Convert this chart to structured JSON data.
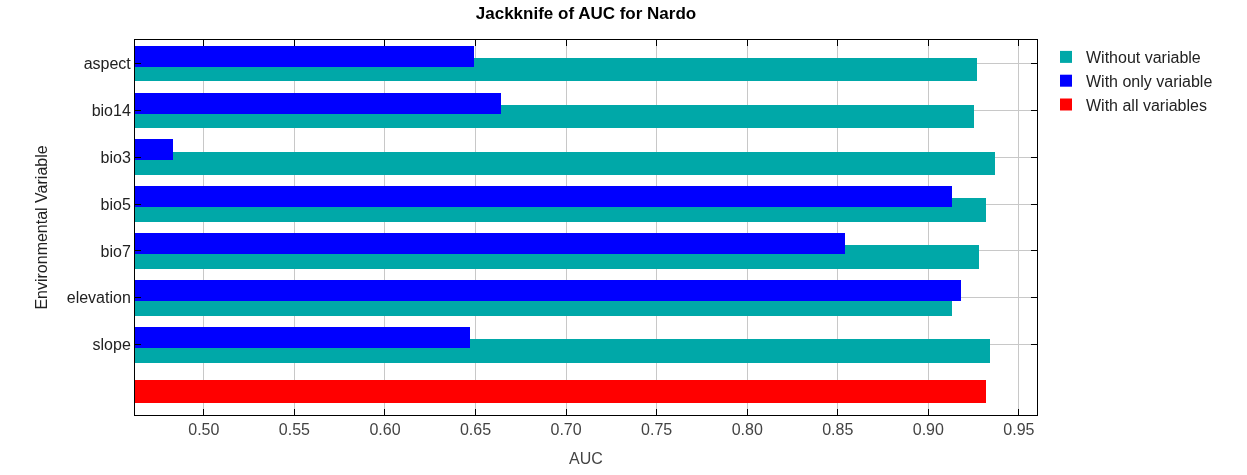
{
  "chart_data": {
    "type": "bar",
    "orientation": "horizontal",
    "title": "Jackknife of AUC for Nardo",
    "xlabel": "AUC",
    "ylabel": "Environmental Variable",
    "categories": [
      "aspect",
      "bio14",
      "bio3",
      "bio5",
      "bio7",
      "elevation",
      "slope",
      null
    ],
    "series": [
      {
        "name": "Without variable",
        "color": "#00a8a8",
        "values": [
          0.927,
          0.925,
          0.937,
          0.932,
          0.928,
          0.913,
          0.934,
          null
        ]
      },
      {
        "name": "With only variable",
        "color": "#0000ff",
        "values": [
          0.649,
          0.664,
          0.483,
          0.913,
          0.854,
          0.918,
          0.647,
          null
        ]
      },
      {
        "name": "With all variables",
        "color": "#ff0000",
        "values": [
          null,
          null,
          null,
          null,
          null,
          null,
          null,
          0.932
        ]
      }
    ],
    "xlim": [
      0.462,
      0.96
    ],
    "xticks": [
      {
        "value": 0.5,
        "label": "0.50"
      },
      {
        "value": 0.55,
        "label": "0.55"
      },
      {
        "value": 0.6,
        "label": "0.60"
      },
      {
        "value": 0.65,
        "label": "0.65"
      },
      {
        "value": 0.7,
        "label": "0.70"
      },
      {
        "value": 0.75,
        "label": "0.75"
      },
      {
        "value": 0.8,
        "label": "0.80"
      },
      {
        "value": 0.85,
        "label": "0.85"
      },
      {
        "value": 0.9,
        "label": "0.90"
      },
      {
        "value": 0.95,
        "label": "0.95"
      }
    ],
    "grid": true,
    "legend": "top right"
  }
}
